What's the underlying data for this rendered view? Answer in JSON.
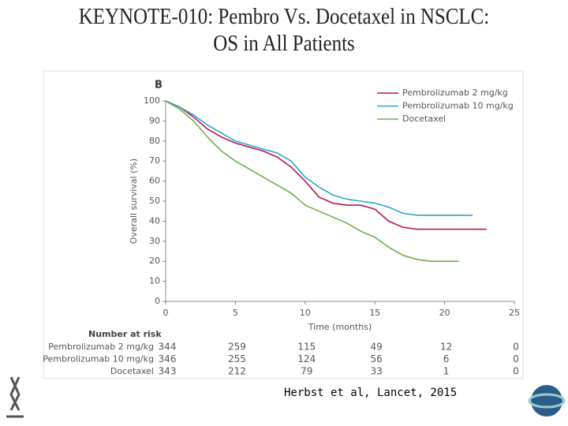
{
  "header": {
    "title_line1": "KEYNOTE-010: Pembro Vs. Docetaxel in NSCLC:",
    "title_line2": "OS in All Patients"
  },
  "chart_data": {
    "type": "line",
    "panel_label": "B",
    "x_label": "Time (months)",
    "y_label": "Overall survival (%)",
    "x": [
      0,
      1,
      2,
      3,
      4,
      5,
      6,
      7,
      8,
      9,
      10,
      11,
      12,
      13,
      14,
      15,
      16,
      17,
      18,
      19,
      20,
      21,
      22,
      23
    ],
    "series": [
      {
        "name": "Pembrolizumab 2 mg/kg",
        "color": "#b5174e",
        "values": [
          100,
          97,
          92,
          86,
          82,
          79,
          77,
          75,
          72,
          67,
          60,
          52,
          49,
          48,
          48,
          46,
          40,
          37,
          36,
          36,
          36,
          36,
          36,
          36
        ]
      },
      {
        "name": "Pembrolizumab 10 mg/kg",
        "color": "#2aa7c6",
        "values": [
          100,
          97,
          93,
          88,
          84,
          80,
          78,
          76,
          74,
          70,
          62,
          57,
          53,
          51,
          50,
          49,
          47,
          44,
          43,
          43,
          43,
          43,
          43,
          null
        ]
      },
      {
        "name": "Docetaxel",
        "color": "#6cb04a",
        "values": [
          100,
          96,
          90,
          82,
          75,
          70,
          66,
          62,
          58,
          54,
          48,
          45,
          42,
          39,
          35,
          32,
          27,
          23,
          21,
          20,
          20,
          20,
          null,
          null
        ]
      }
    ],
    "xlim": [
      0,
      25
    ],
    "xticks": [
      0,
      5,
      10,
      15,
      20,
      25
    ],
    "ylim": [
      0,
      100
    ],
    "yticks": [
      0,
      10,
      20,
      30,
      40,
      50,
      60,
      70,
      80,
      90,
      100
    ],
    "risk_table": {
      "title": "Number at risk",
      "rows": [
        {
          "name": "Pembrolizumab 2 mg/kg",
          "values": [
            344,
            259,
            115,
            49,
            12,
            0
          ]
        },
        {
          "name": "Pembrolizumab 10 mg/kg",
          "values": [
            346,
            255,
            124,
            56,
            6,
            0
          ]
        },
        {
          "name": "Docetaxel",
          "values": [
            343,
            212,
            79,
            33,
            1,
            0
          ]
        }
      ]
    }
  },
  "footer": {
    "citation": "Herbst et al, Lancet, 2015"
  }
}
